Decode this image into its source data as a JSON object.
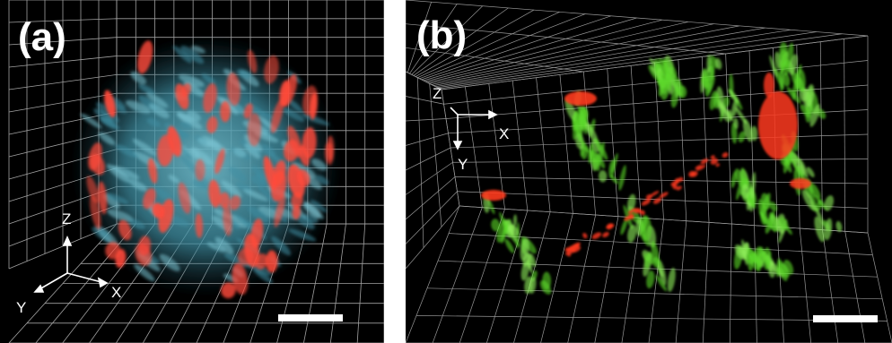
{
  "panels": [
    {
      "label": "(a)",
      "axes": {
        "z": "Z",
        "y": "Y",
        "x": "X"
      },
      "scale_bar": true,
      "colors": {
        "background": "#000000",
        "nuclei": "#ff4a3a",
        "cytoplasm": "#4fa6b8",
        "grid": "#d8d8d8"
      }
    },
    {
      "label": "(b)",
      "axes": {
        "z": "Z",
        "x": "X",
        "y": "Y"
      },
      "scale_bar": true,
      "colors": {
        "background": "#000000",
        "signal_green": "#5cd82a",
        "signal_red": "#ff3a1e",
        "grid": "#d8d8d8"
      }
    }
  ]
}
